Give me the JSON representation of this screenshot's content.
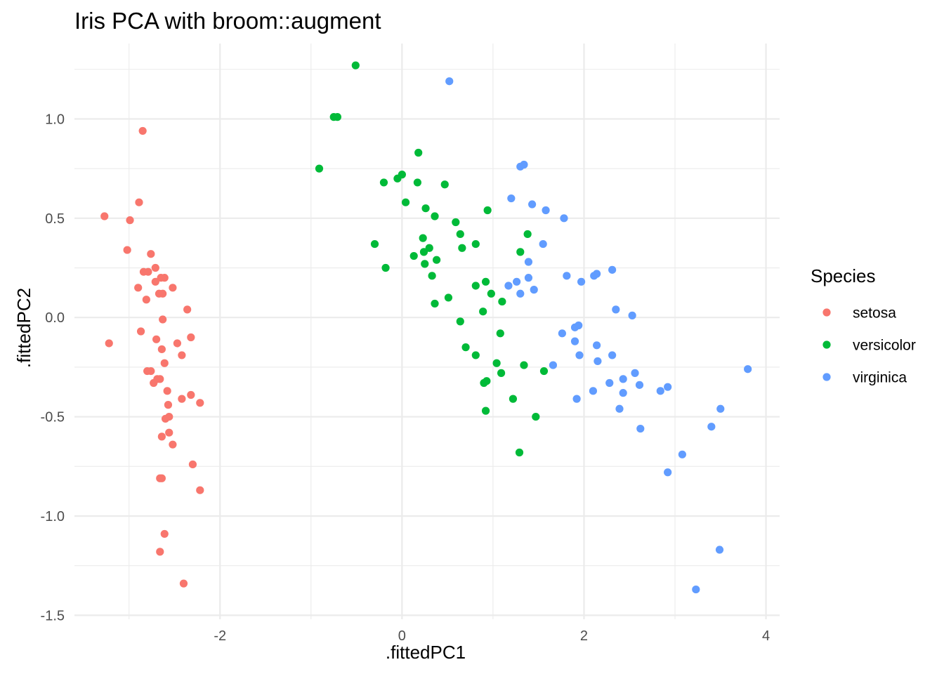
{
  "chart_data": {
    "type": "scatter",
    "title": "Iris PCA with broom::augment",
    "xlabel": ".fittedPC1",
    "ylabel": ".fittedPC2",
    "xlim": [
      -3.6,
      4.15
    ],
    "ylim": [
      -1.52,
      1.38
    ],
    "x_ticks": [
      -2,
      0,
      2,
      4
    ],
    "x_tick_labels": [
      "-2",
      "0",
      "2",
      "4"
    ],
    "y_ticks": [
      -1.5,
      -1.0,
      -0.5,
      0.0,
      0.5,
      1.0
    ],
    "y_tick_labels": [
      "-1.5",
      "-1.0",
      "-0.5",
      "0.0",
      "0.5",
      "1.0"
    ],
    "grid": true,
    "legend": {
      "title": "Species",
      "placement": "right"
    },
    "series": [
      {
        "name": "setosa",
        "color": "#f8766d",
        "points": [
          [
            -2.85,
            0.94
          ],
          [
            -2.89,
            0.58
          ],
          [
            -3.27,
            0.51
          ],
          [
            -2.99,
            0.49
          ],
          [
            -3.02,
            0.34
          ],
          [
            -2.76,
            0.32
          ],
          [
            -2.71,
            0.25
          ],
          [
            -2.79,
            0.23
          ],
          [
            -2.84,
            0.23
          ],
          [
            -2.61,
            0.2
          ],
          [
            -2.65,
            0.2
          ],
          [
            -2.71,
            0.18
          ],
          [
            -2.9,
            0.15
          ],
          [
            -2.52,
            0.15
          ],
          [
            -2.63,
            0.12
          ],
          [
            -2.67,
            0.12
          ],
          [
            -2.81,
            0.09
          ],
          [
            -2.36,
            0.04
          ],
          [
            -2.63,
            -0.01
          ],
          [
            -2.87,
            -0.07
          ],
          [
            -3.22,
            -0.13
          ],
          [
            -2.32,
            -0.1
          ],
          [
            -2.7,
            -0.11
          ],
          [
            -2.47,
            -0.13
          ],
          [
            -2.64,
            -0.16
          ],
          [
            -2.42,
            -0.19
          ],
          [
            -2.61,
            -0.23
          ],
          [
            -2.76,
            -0.27
          ],
          [
            -2.8,
            -0.27
          ],
          [
            -2.66,
            -0.31
          ],
          [
            -2.69,
            -0.31
          ],
          [
            -2.73,
            -0.33
          ],
          [
            -2.58,
            -0.37
          ],
          [
            -2.32,
            -0.39
          ],
          [
            -2.42,
            -0.41
          ],
          [
            -2.22,
            -0.43
          ],
          [
            -2.57,
            -0.44
          ],
          [
            -2.56,
            -0.5
          ],
          [
            -2.6,
            -0.51
          ],
          [
            -2.56,
            -0.58
          ],
          [
            -2.64,
            -0.6
          ],
          [
            -2.52,
            -0.64
          ],
          [
            -2.3,
            -0.74
          ],
          [
            -2.22,
            -0.87
          ],
          [
            -2.64,
            -0.81
          ],
          [
            -2.66,
            -0.81
          ],
          [
            -2.61,
            -1.09
          ],
          [
            -2.66,
            -1.18
          ],
          [
            -2.4,
            -1.34
          ]
        ]
      },
      {
        "name": "versicolor",
        "color": "#00ba38",
        "points": [
          [
            -0.51,
            1.27
          ],
          [
            -0.75,
            1.01
          ],
          [
            -0.71,
            1.01
          ],
          [
            -0.91,
            0.75
          ],
          [
            -0.2,
            0.68
          ],
          [
            -0.05,
            0.7
          ],
          [
            0.0,
            0.72
          ],
          [
            0.18,
            0.83
          ],
          [
            0.17,
            0.68
          ],
          [
            0.47,
            0.67
          ],
          [
            0.04,
            0.58
          ],
          [
            0.26,
            0.55
          ],
          [
            0.36,
            0.51
          ],
          [
            0.59,
            0.48
          ],
          [
            0.94,
            0.54
          ],
          [
            0.64,
            0.42
          ],
          [
            1.38,
            0.42
          ],
          [
            -0.3,
            0.37
          ],
          [
            0.23,
            0.4
          ],
          [
            0.81,
            0.37
          ],
          [
            0.3,
            0.35
          ],
          [
            0.24,
            0.33
          ],
          [
            0.66,
            0.35
          ],
          [
            1.3,
            0.33
          ],
          [
            0.13,
            0.31
          ],
          [
            0.38,
            0.29
          ],
          [
            -0.18,
            0.25
          ],
          [
            0.25,
            0.27
          ],
          [
            0.33,
            0.21
          ],
          [
            0.81,
            0.16
          ],
          [
            0.92,
            0.18
          ],
          [
            0.98,
            0.12
          ],
          [
            0.51,
            0.1
          ],
          [
            1.1,
            0.08
          ],
          [
            0.36,
            0.07
          ],
          [
            0.89,
            0.03
          ],
          [
            0.64,
            -0.02
          ],
          [
            1.08,
            -0.08
          ],
          [
            0.7,
            -0.15
          ],
          [
            0.81,
            -0.19
          ],
          [
            1.04,
            -0.23
          ],
          [
            1.09,
            -0.28
          ],
          [
            1.56,
            -0.27
          ],
          [
            1.34,
            -0.24
          ],
          [
            0.9,
            -0.33
          ],
          [
            0.93,
            -0.32
          ],
          [
            1.22,
            -0.41
          ],
          [
            0.92,
            -0.47
          ],
          [
            1.47,
            -0.5
          ],
          [
            1.29,
            -0.68
          ]
        ]
      },
      {
        "name": "virginica",
        "color": "#619cff",
        "points": [
          [
            0.52,
            1.19
          ],
          [
            1.3,
            0.76
          ],
          [
            1.34,
            0.77
          ],
          [
            1.2,
            0.6
          ],
          [
            1.43,
            0.57
          ],
          [
            1.58,
            0.54
          ],
          [
            1.78,
            0.5
          ],
          [
            1.55,
            0.37
          ],
          [
            1.39,
            0.28
          ],
          [
            1.81,
            0.21
          ],
          [
            1.97,
            0.18
          ],
          [
            2.11,
            0.21
          ],
          [
            2.14,
            0.22
          ],
          [
            2.31,
            0.24
          ],
          [
            1.17,
            0.16
          ],
          [
            1.26,
            0.18
          ],
          [
            1.39,
            0.2
          ],
          [
            1.45,
            0.14
          ],
          [
            1.3,
            0.12
          ],
          [
            2.35,
            0.04
          ],
          [
            2.53,
            0.01
          ],
          [
            1.76,
            -0.08
          ],
          [
            1.9,
            -0.05
          ],
          [
            1.94,
            -0.04
          ],
          [
            1.9,
            -0.12
          ],
          [
            1.95,
            -0.19
          ],
          [
            2.14,
            -0.14
          ],
          [
            2.15,
            -0.22
          ],
          [
            2.31,
            -0.19
          ],
          [
            1.66,
            -0.24
          ],
          [
            2.56,
            -0.28
          ],
          [
            2.43,
            -0.31
          ],
          [
            2.28,
            -0.33
          ],
          [
            2.61,
            -0.34
          ],
          [
            2.1,
            -0.37
          ],
          [
            2.43,
            -0.38
          ],
          [
            2.84,
            -0.37
          ],
          [
            2.92,
            -0.35
          ],
          [
            3.8,
            -0.26
          ],
          [
            1.92,
            -0.41
          ],
          [
            2.39,
            -0.46
          ],
          [
            3.5,
            -0.46
          ],
          [
            2.62,
            -0.56
          ],
          [
            3.4,
            -0.55
          ],
          [
            3.08,
            -0.69
          ],
          [
            2.92,
            -0.78
          ],
          [
            3.49,
            -1.17
          ],
          [
            3.23,
            -1.37
          ]
        ]
      }
    ]
  }
}
